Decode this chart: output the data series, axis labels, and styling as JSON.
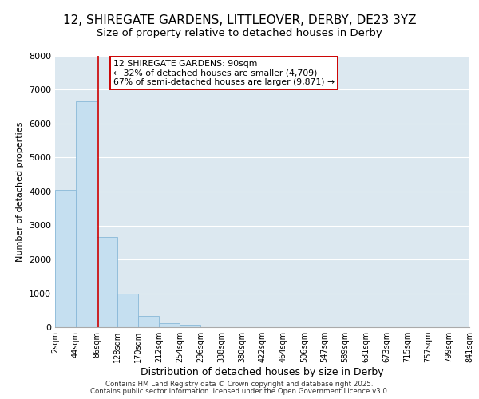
{
  "title": "12, SHIREGATE GARDENS, LITTLEOVER, DERBY, DE23 3YZ",
  "subtitle": "Size of property relative to detached houses in Derby",
  "xlabel": "Distribution of detached houses by size in Derby",
  "ylabel": "Number of detached properties",
  "bar_edges": [
    2,
    44,
    86,
    128,
    170,
    212,
    254,
    296,
    338,
    380,
    422,
    464,
    506,
    547,
    589,
    631,
    673,
    715,
    757,
    799,
    841
  ],
  "bar_heights": [
    4050,
    6650,
    2650,
    1000,
    330,
    120,
    80,
    0,
    0,
    0,
    0,
    0,
    0,
    0,
    0,
    0,
    0,
    0,
    0,
    0
  ],
  "bar_color": "#c5dff0",
  "bar_edge_color": "#89b8d8",
  "vline_x": 90,
  "vline_color": "#cc0000",
  "annotation_text": "12 SHIREGATE GARDENS: 90sqm\n← 32% of detached houses are smaller (4,709)\n67% of semi-detached houses are larger (9,871) →",
  "annotation_box_color": "#ffffff",
  "annotation_box_edge": "#cc0000",
  "ylim": [
    0,
    8000
  ],
  "yticks": [
    0,
    1000,
    2000,
    3000,
    4000,
    5000,
    6000,
    7000,
    8000
  ],
  "xtick_labels": [
    "2sqm",
    "44sqm",
    "86sqm",
    "128sqm",
    "170sqm",
    "212sqm",
    "254sqm",
    "296sqm",
    "338sqm",
    "380sqm",
    "422sqm",
    "464sqm",
    "506sqm",
    "547sqm",
    "589sqm",
    "631sqm",
    "673sqm",
    "715sqm",
    "757sqm",
    "799sqm",
    "841sqm"
  ],
  "background_color": "#ffffff",
  "grid_color": "#dce8f0",
  "footer1": "Contains HM Land Registry data © Crown copyright and database right 2025.",
  "footer2": "Contains public sector information licensed under the Open Government Licence v3.0.",
  "title_fontsize": 11,
  "subtitle_fontsize": 9.5,
  "ylabel_fontsize": 8,
  "xlabel_fontsize": 9
}
